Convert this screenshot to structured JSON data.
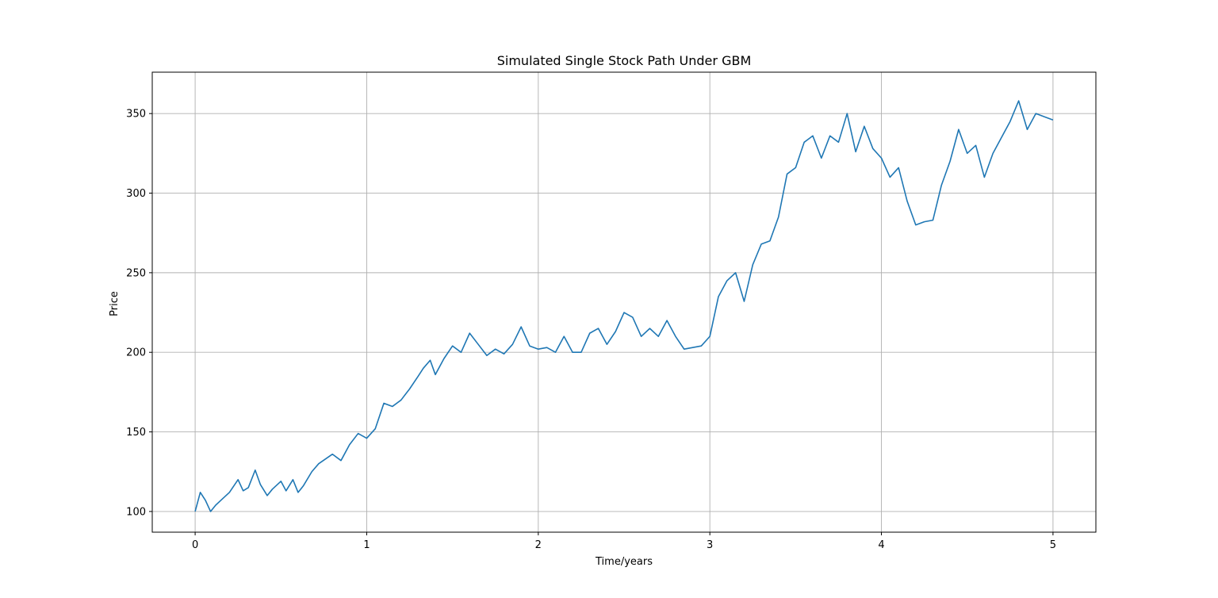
{
  "chart_data": {
    "type": "line",
    "title": "Simulated Single Stock Path Under GBM",
    "xlabel": "Time/years",
    "ylabel": "Price",
    "xlim": [
      -0.25,
      5.25
    ],
    "ylim": [
      87,
      376
    ],
    "grid": true,
    "x_ticks": [
      0,
      1,
      2,
      3,
      4,
      5
    ],
    "x_tick_labels": [
      "0",
      "1",
      "2",
      "3",
      "4",
      "5"
    ],
    "y_ticks": [
      100,
      150,
      200,
      250,
      300,
      350
    ],
    "y_tick_labels": [
      "100",
      "150",
      "200",
      "250",
      "300",
      "350"
    ],
    "colors": {
      "line": "#1f77b4",
      "grid": "#b0b0b0",
      "axes": "#000000"
    },
    "series": [
      {
        "x": [
          0,
          0.03,
          0.06,
          0.09,
          0.12,
          0.16,
          0.2,
          0.25,
          0.28,
          0.31,
          0.35,
          0.38,
          0.42,
          0.45,
          0.5,
          0.53,
          0.57,
          0.6,
          0.63,
          0.68,
          0.72,
          0.76,
          0.8,
          0.85,
          0.9,
          0.95,
          1.0,
          1.05,
          1.1,
          1.15,
          1.2,
          1.25,
          1.3,
          1.33,
          1.37,
          1.4,
          1.45,
          1.5,
          1.55,
          1.6,
          1.65,
          1.7,
          1.75,
          1.8,
          1.85,
          1.9,
          1.95,
          2.0,
          2.05,
          2.1,
          2.15,
          2.2,
          2.25,
          2.3,
          2.35,
          2.4,
          2.45,
          2.5,
          2.55,
          2.6,
          2.65,
          2.7,
          2.75,
          2.8,
          2.85,
          2.9,
          2.95,
          3.0,
          3.05,
          3.1,
          3.15,
          3.2,
          3.25,
          3.3,
          3.35,
          3.4,
          3.45,
          3.5,
          3.55,
          3.6,
          3.65,
          3.7,
          3.75,
          3.8,
          3.85,
          3.9,
          3.95,
          4.0,
          4.05,
          4.1,
          4.15,
          4.2,
          4.25,
          4.3,
          4.35,
          4.4,
          4.45,
          4.5,
          4.55,
          4.6,
          4.65,
          4.7,
          4.75,
          4.8,
          4.85,
          4.9,
          4.95,
          5.0
        ],
        "y": [
          100,
          112,
          107,
          100,
          104,
          108,
          112,
          120,
          113,
          115,
          126,
          117,
          110,
          114,
          119,
          113,
          120,
          112,
          116,
          125,
          130,
          133,
          136,
          132,
          142,
          149,
          146,
          152,
          168,
          166,
          170,
          177,
          185,
          190,
          195,
          186,
          196,
          204,
          200,
          212,
          205,
          198,
          202,
          199,
          205,
          216,
          204,
          202,
          203,
          200,
          210,
          200,
          200,
          212,
          215,
          205,
          213,
          225,
          222,
          210,
          215,
          210,
          220,
          210,
          202,
          203,
          204,
          210,
          235,
          245,
          250,
          232,
          255,
          268,
          270,
          285,
          312,
          316,
          332,
          336,
          322,
          336,
          332,
          350,
          326,
          342,
          328,
          322,
          310,
          316,
          295,
          280,
          282,
          283,
          305,
          320,
          340,
          325,
          330,
          310,
          325,
          335,
          345,
          358,
          340,
          350,
          348,
          346
        ]
      }
    ]
  }
}
